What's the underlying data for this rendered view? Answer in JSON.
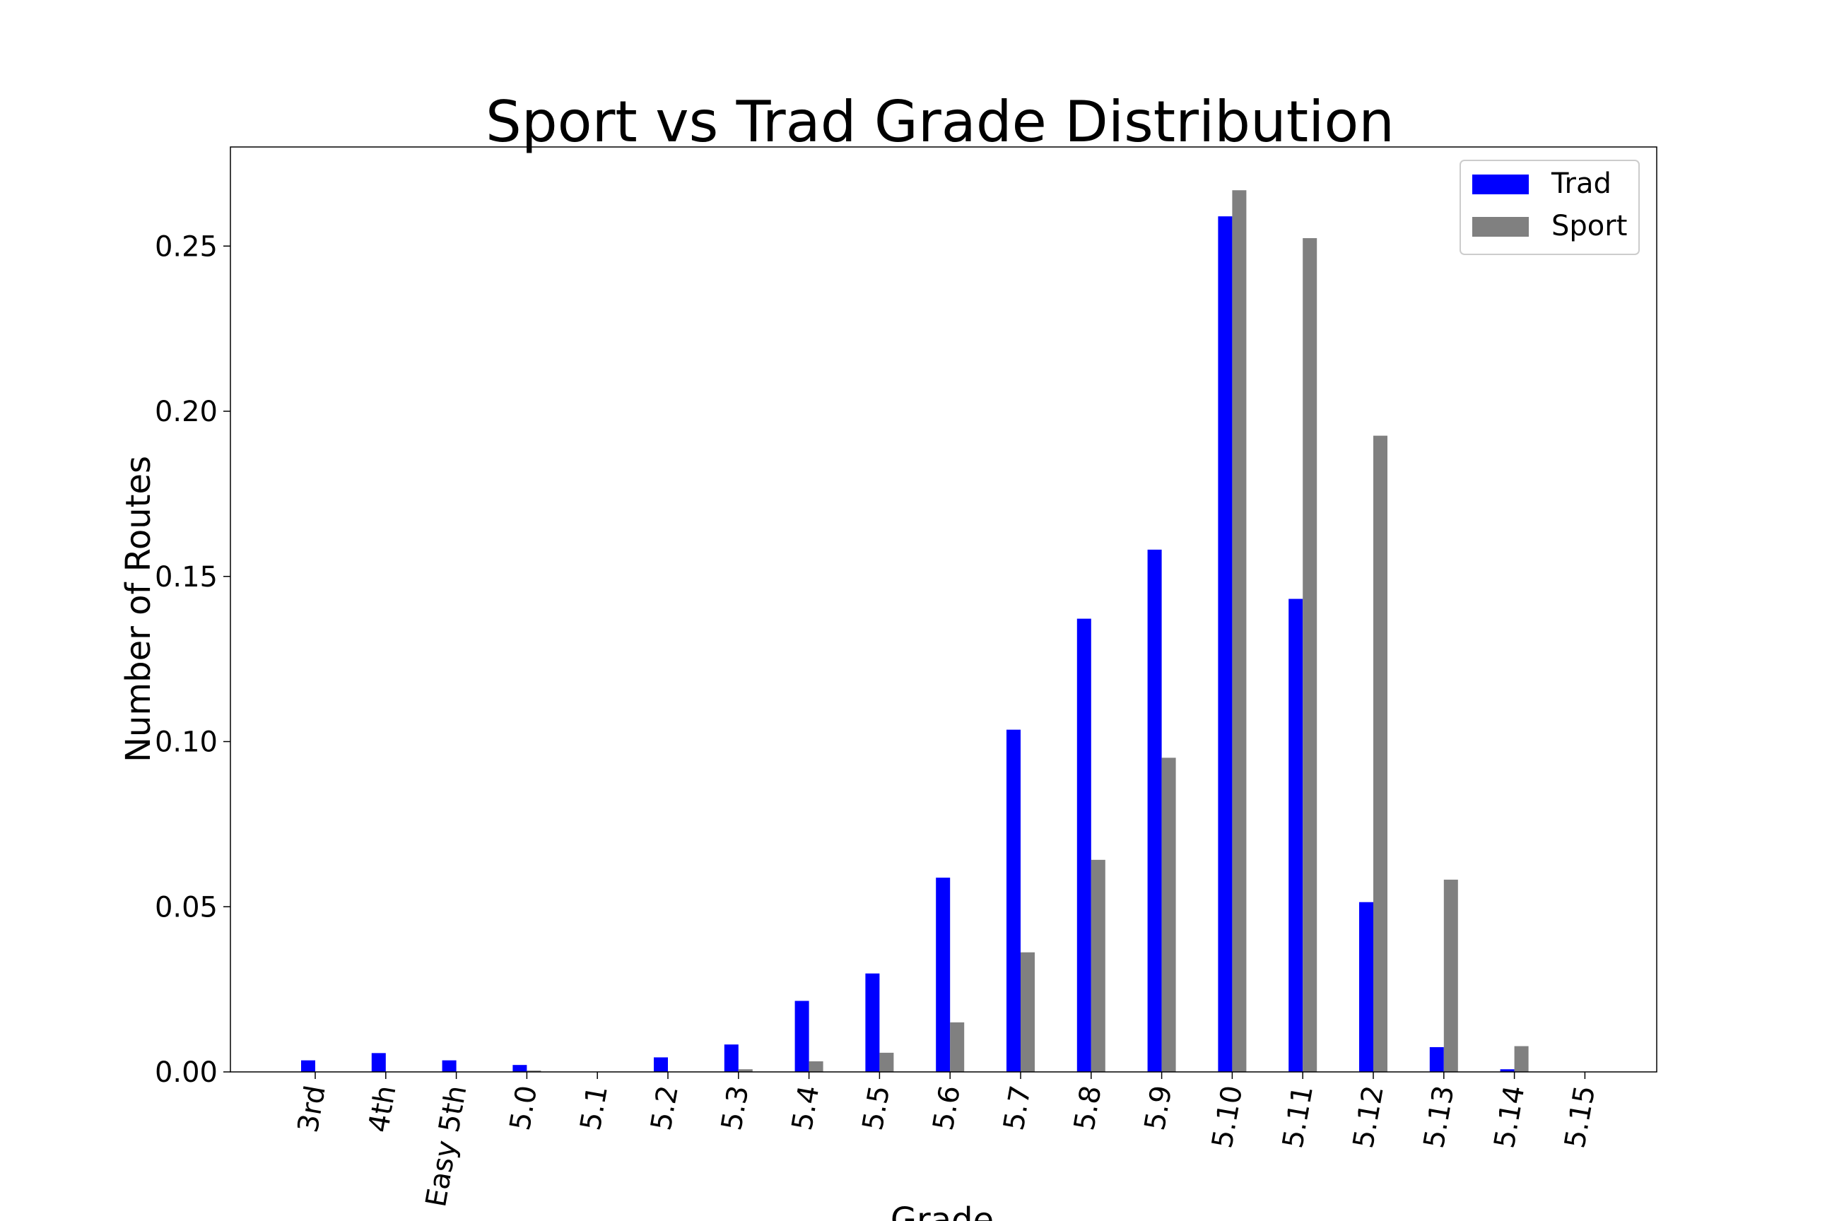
{
  "chart_data": {
    "type": "bar",
    "title": "Sport vs Trad Grade Distribution",
    "xlabel": "Grade",
    "ylabel": "Number of Routes",
    "categories": [
      "3rd",
      "4th",
      "Easy 5th",
      "5.0",
      "5.1",
      "5.2",
      "5.3",
      "5.4",
      "5.5",
      "5.6",
      "5.7",
      "5.8",
      "5.9",
      "5.10",
      "5.11",
      "5.12",
      "5.13",
      "5.14",
      "5.15"
    ],
    "series": [
      {
        "name": "Trad",
        "color": "#0000ff",
        "values": [
          0.0035,
          0.0057,
          0.0035,
          0.0021,
          0.0,
          0.0044,
          0.0083,
          0.0215,
          0.0298,
          0.0588,
          0.1036,
          0.1372,
          0.1581,
          0.259,
          0.1432,
          0.0514,
          0.0075,
          0.0008,
          0.0
        ]
      },
      {
        "name": "Sport",
        "color": "#808080",
        "values": [
          0.0,
          0.0,
          0.0,
          0.0004,
          0.0,
          0.0,
          0.0008,
          0.0032,
          0.0058,
          0.015,
          0.0362,
          0.0642,
          0.0951,
          0.2669,
          0.2524,
          0.1926,
          0.0582,
          0.0078,
          0.0
        ]
      }
    ],
    "ylim": [
      0,
      0.28
    ],
    "yticks": [
      "0.00",
      "0.05",
      "0.10",
      "0.15",
      "0.20",
      "0.25"
    ],
    "legend_position": "top-right",
    "grid": false
  }
}
